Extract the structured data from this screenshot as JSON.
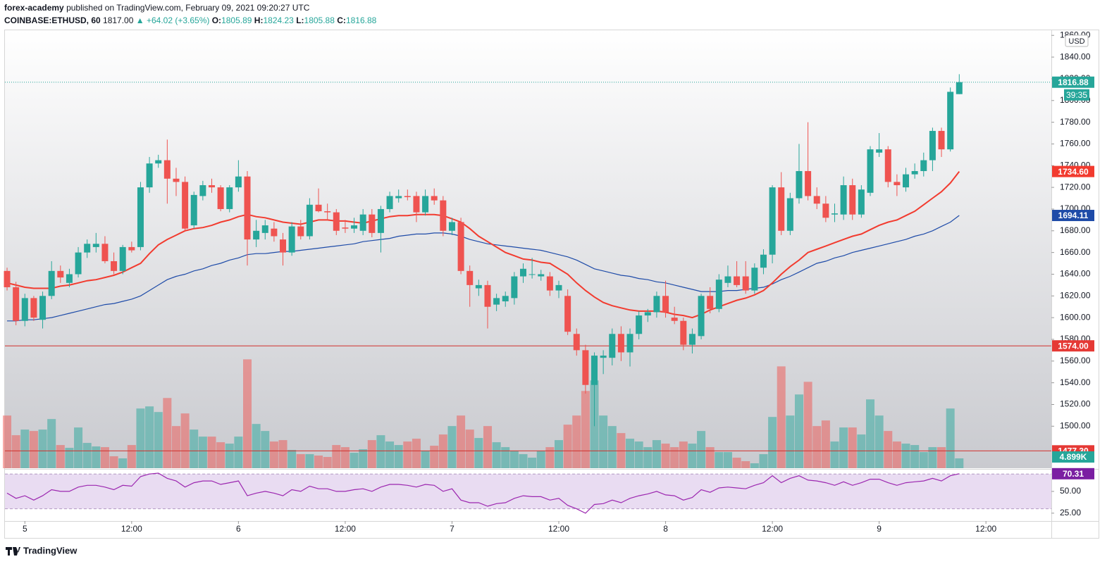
{
  "header": {
    "publisher": "forex-academy",
    "published": "published on TradingView.com, February 09, 2021 09:20:27 UTC",
    "symbol": "COINBASE:ETHUSD, 60",
    "last": "1817.00",
    "change": "▲ +64.02 (+3.65%)",
    "o_label": "O:",
    "o": "1805.89",
    "h_label": "H:",
    "h": "1824.23",
    "l_label": "L:",
    "l": "1805.88",
    "c_label": "C:",
    "c": "1816.88"
  },
  "footer": {
    "brand": "TradingView"
  },
  "chart_data": {
    "type": "candlestick",
    "currency": "USD",
    "countdown": "39:35",
    "up_color": "#26a69a",
    "down_color": "#ef5350",
    "xlim": [
      -0.24,
      117.35
    ],
    "xticks": [
      {
        "value": 2,
        "label": "5"
      },
      {
        "value": 14,
        "label": "12:00"
      },
      {
        "value": 26,
        "label": "6"
      },
      {
        "value": 38,
        "label": "12:00"
      },
      {
        "value": 50,
        "label": "7"
      },
      {
        "value": 62,
        "label": "12:00"
      },
      {
        "value": 74,
        "label": "8"
      },
      {
        "value": 86,
        "label": "12:00"
      },
      {
        "value": 98,
        "label": "9"
      },
      {
        "value": 110,
        "label": "12:00"
      }
    ],
    "ylim": [
      1461.3,
      1863.4
    ],
    "yticks": [
      {
        "value": 1500,
        "label": "1500.00"
      },
      {
        "value": 1520,
        "label": "1520.00"
      },
      {
        "value": 1540,
        "label": "1540.00"
      },
      {
        "value": 1560,
        "label": "1560.00"
      },
      {
        "value": 1580,
        "label": "1580.00"
      },
      {
        "value": 1600,
        "label": "1600.00"
      },
      {
        "value": 1620,
        "label": "1620.00"
      },
      {
        "value": 1640,
        "label": "1640.00"
      },
      {
        "value": 1660,
        "label": "1660.00"
      },
      {
        "value": 1680,
        "label": "1680.00"
      },
      {
        "value": 1700,
        "label": "1700.00"
      },
      {
        "value": 1720,
        "label": "1720.00"
      },
      {
        "value": 1740,
        "label": "1740.00"
      },
      {
        "value": 1760,
        "label": "1760.00"
      },
      {
        "value": 1780,
        "label": "1780.00"
      },
      {
        "value": 1800,
        "label": "1800.00"
      },
      {
        "value": 1820,
        "label": "1820.00"
      },
      {
        "value": 1840,
        "label": "1840.00"
      },
      {
        "value": 1860,
        "label": "1860.00"
      }
    ],
    "open": [
      1643,
      1628,
      1597,
      1618,
      1598,
      1620,
      1643,
      1632,
      1640,
      1660,
      1665,
      1668,
      1652,
      1643,
      1665,
      1665,
      1720,
      1742,
      1745,
      1728,
      1725,
      1685,
      1712,
      1722,
      1720,
      1700,
      1720,
      1730,
      1672,
      1678,
      1682,
      1672,
      1660,
      1684,
      1675,
      1704,
      1698,
      1697,
      1683,
      1682,
      1680,
      1695,
      1678,
      1700,
      1710,
      1712,
      1712,
      1697,
      1712,
      1708,
      1680,
      1688,
      1643,
      1627,
      1630,
      1612,
      1615,
      1618,
      1638,
      1640,
      1638,
      1638,
      1625,
      1620,
      1585,
      1570,
      1538,
      1563,
      1563,
      1585,
      1568,
      1585,
      1602,
      1605,
      1620,
      1600,
      1597,
      1575,
      1583,
      1620,
      1608,
      1632,
      1638,
      1638,
      1625,
      1646,
      1658,
      1720,
      1680,
      1710,
      1735,
      1712,
      1705,
      1695,
      1695,
      1722,
      1695,
      1715,
      1752,
      1755,
      1725,
      1720,
      1732,
      1735,
      1745,
      1772,
      1755,
      1805.89
    ],
    "high": [
      1646,
      1633,
      1622,
      1620,
      1624,
      1652,
      1648,
      1645,
      1665,
      1672,
      1678,
      1675,
      1660,
      1667,
      1670,
      1725,
      1748,
      1750,
      1764,
      1738,
      1730,
      1716,
      1726,
      1728,
      1722,
      1722,
      1745,
      1735,
      1690,
      1690,
      1688,
      1678,
      1688,
      1690,
      1710,
      1719,
      1705,
      1700,
      1690,
      1692,
      1700,
      1700,
      1703,
      1716,
      1718,
      1718,
      1716,
      1718,
      1719,
      1712,
      1692,
      1692,
      1648,
      1635,
      1634,
      1622,
      1624,
      1642,
      1650,
      1655,
      1644,
      1642,
      1634,
      1626,
      1590,
      1575,
      1568,
      1570,
      1590,
      1592,
      1590,
      1606,
      1608,
      1624,
      1634,
      1610,
      1600,
      1590,
      1622,
      1628,
      1640,
      1648,
      1652,
      1652,
      1650,
      1663,
      1722,
      1734,
      1715,
      1760,
      1780,
      1720,
      1712,
      1705,
      1730,
      1728,
      1722,
      1758,
      1770,
      1758,
      1732,
      1738,
      1742,
      1752,
      1775,
      1775,
      1812,
      1824.23
    ],
    "low": [
      1625,
      1593,
      1592,
      1597,
      1590,
      1617,
      1632,
      1628,
      1637,
      1655,
      1660,
      1650,
      1640,
      1640,
      1660,
      1662,
      1715,
      1738,
      1705,
      1712,
      1680,
      1682,
      1708,
      1715,
      1698,
      1697,
      1716,
      1648,
      1665,
      1672,
      1670,
      1648,
      1657,
      1672,
      1672,
      1697,
      1690,
      1676,
      1678,
      1678,
      1676,
      1674,
      1660,
      1697,
      1706,
      1708,
      1688,
      1694,
      1704,
      1675,
      1676,
      1640,
      1610,
      1620,
      1590,
      1606,
      1610,
      1612,
      1632,
      1636,
      1634,
      1620,
      1618,
      1584,
      1565,
      1530,
      1500,
      1548,
      1556,
      1560,
      1555,
      1580,
      1596,
      1600,
      1600,
      1594,
      1570,
      1567,
      1580,
      1604,
      1605,
      1628,
      1628,
      1622,
      1622,
      1640,
      1650,
      1676,
      1676,
      1705,
      1708,
      1700,
      1688,
      1688,
      1690,
      1690,
      1692,
      1712,
      1748,
      1720,
      1712,
      1716,
      1728,
      1730,
      1735,
      1748,
      1753,
      1805.88
    ],
    "close": [
      1628,
      1597,
      1618,
      1600,
      1620,
      1643,
      1637,
      1640,
      1660,
      1668,
      1668,
      1652,
      1643,
      1665,
      1662,
      1720,
      1742,
      1745,
      1728,
      1725,
      1682,
      1713,
      1722,
      1720,
      1700,
      1720,
      1730,
      1672,
      1680,
      1685,
      1675,
      1660,
      1684,
      1675,
      1704,
      1698,
      1697,
      1680,
      1682,
      1685,
      1695,
      1678,
      1700,
      1712,
      1712,
      1711,
      1697,
      1712,
      1708,
      1680,
      1688,
      1643,
      1630,
      1630,
      1610,
      1618,
      1620,
      1638,
      1645,
      1640,
      1640,
      1625,
      1630,
      1587,
      1570,
      1538,
      1565,
      1565,
      1585,
      1568,
      1585,
      1602,
      1605,
      1620,
      1605,
      1597,
      1575,
      1585,
      1620,
      1608,
      1635,
      1638,
      1630,
      1625,
      1646,
      1658,
      1720,
      1680,
      1710,
      1735,
      1712,
      1705,
      1692,
      1696,
      1722,
      1695,
      1718,
      1755,
      1755,
      1725,
      1722,
      1732,
      1735,
      1745,
      1772,
      1755,
      1808,
      1816.88
    ],
    "volume": {
      "vlim": [
        0,
        60000
      ],
      "values": [
        26250,
        16450,
        19250,
        18550,
        19250,
        24500,
        11550,
        10150,
        20300,
        12600,
        10850,
        10500,
        5950,
        4900,
        11550,
        29750,
        30800,
        28000,
        35000,
        21000,
        27300,
        19250,
        15750,
        15750,
        12950,
        12250,
        15750,
        54250,
        22050,
        18550,
        13300,
        14000,
        9100,
        7000,
        7000,
        6300,
        5600,
        11550,
        10500,
        7700,
        9450,
        14000,
        16450,
        13300,
        11550,
        13300,
        14700,
        8750,
        11200,
        16800,
        21000,
        26250,
        19250,
        15050,
        21000,
        12950,
        10500,
        8750,
        7000,
        5250,
        8750,
        10500,
        14000,
        21700,
        26250,
        38500,
        43750,
        26250,
        21000,
        17500,
        14700,
        13300,
        10500,
        14000,
        12250,
        10500,
        13300,
        12250,
        18550,
        10500,
        8050,
        8050,
        5250,
        3500,
        2450,
        7000,
        25550,
        50750,
        26250,
        36750,
        43050,
        21000,
        23800,
        13300,
        20300,
        20300,
        16800,
        34300,
        26250,
        18550,
        13300,
        12250,
        11550,
        8050,
        10500,
        10500,
        29750,
        4899
      ],
      "last_label": "4.899K"
    },
    "ma_fast": {
      "color": "#f23b2f",
      "last_label": "1734.60",
      "values": [
        1632,
        1630,
        1628,
        1627,
        1627,
        1627,
        1629,
        1630,
        1632,
        1634,
        1635,
        1637,
        1639,
        1642,
        1646,
        1650,
        1659,
        1667,
        1672,
        1676,
        1680,
        1682,
        1683,
        1685,
        1688,
        1690,
        1693,
        1695,
        1693,
        1692,
        1690,
        1688,
        1687,
        1686,
        1688,
        1690,
        1690,
        1689,
        1689,
        1688,
        1687,
        1689,
        1691,
        1693,
        1694,
        1694,
        1695,
        1695,
        1695,
        1694,
        1691,
        1688,
        1682,
        1675,
        1670,
        1665,
        1660,
        1657,
        1654,
        1653,
        1651,
        1650,
        1645,
        1640,
        1632,
        1625,
        1619,
        1614,
        1611,
        1609,
        1607,
        1606,
        1606,
        1606,
        1605,
        1603,
        1602,
        1600,
        1603,
        1607,
        1610,
        1613,
        1616,
        1618,
        1621,
        1625,
        1632,
        1640,
        1647,
        1653,
        1660,
        1663,
        1666,
        1669,
        1672,
        1675,
        1677,
        1681,
        1685,
        1688,
        1690,
        1694,
        1698,
        1704,
        1710,
        1716,
        1724,
        1734.6
      ]
    },
    "ma_slow": {
      "color": "#1e4ba8",
      "values": [
        1597,
        1597,
        1598,
        1598,
        1599,
        1600,
        1602,
        1604,
        1606,
        1608,
        1610,
        1612,
        1613,
        1615,
        1617,
        1620,
        1625,
        1630,
        1635,
        1638,
        1640,
        1643,
        1645,
        1648,
        1650,
        1653,
        1655,
        1658,
        1659,
        1659,
        1660,
        1661,
        1661,
        1662,
        1663,
        1664,
        1665,
        1666,
        1667,
        1668,
        1670,
        1671,
        1672,
        1673,
        1675,
        1676,
        1677,
        1677,
        1678,
        1678,
        1677,
        1675,
        1672,
        1670,
        1668,
        1667,
        1666,
        1665,
        1664,
        1663,
        1662,
        1660,
        1658,
        1656,
        1653,
        1649,
        1645,
        1643,
        1641,
        1639,
        1638,
        1636,
        1635,
        1633,
        1632,
        1630,
        1628,
        1626,
        1624,
        1624,
        1624,
        1625,
        1625,
        1626,
        1627,
        1628,
        1631,
        1635,
        1638,
        1642,
        1646,
        1650,
        1652,
        1655,
        1657,
        1660,
        1662,
        1664,
        1666,
        1668,
        1670,
        1672,
        1675,
        1677,
        1680,
        1684,
        1688,
        1694.11
      ]
    },
    "hlines": [
      {
        "value": 1574.0,
        "label": "1574.00"
      },
      {
        "value": 1477.3,
        "label": "1477.30"
      }
    ],
    "rsi": {
      "color": "#9c27b0",
      "ylim": [
        16,
        74.2
      ],
      "band": [
        30,
        70
      ],
      "yticks": [
        {
          "value": 25,
          "label": "25.00"
        },
        {
          "value": 50,
          "label": "50.00"
        }
      ],
      "values": [
        48,
        42,
        45,
        40,
        45,
        52,
        50,
        50,
        55,
        57,
        57,
        55,
        52,
        57,
        56,
        67,
        70,
        71,
        65,
        62,
        55,
        60,
        62,
        62,
        58,
        60,
        62,
        45,
        48,
        50,
        48,
        45,
        52,
        50,
        56,
        53,
        53,
        50,
        50,
        52,
        53,
        50,
        55,
        58,
        58,
        57,
        55,
        58,
        57,
        50,
        53,
        40,
        37,
        37,
        33,
        36,
        37,
        42,
        45,
        44,
        44,
        40,
        42,
        34,
        30,
        25,
        35,
        36,
        40,
        37,
        42,
        45,
        47,
        50,
        46,
        45,
        40,
        43,
        52,
        49,
        54,
        55,
        54,
        53,
        57,
        60,
        68,
        60,
        65,
        68,
        63,
        62,
        60,
        57,
        61,
        57,
        60,
        64,
        64,
        60,
        57,
        60,
        61,
        62,
        65,
        62,
        68,
        70.31
      ]
    }
  }
}
